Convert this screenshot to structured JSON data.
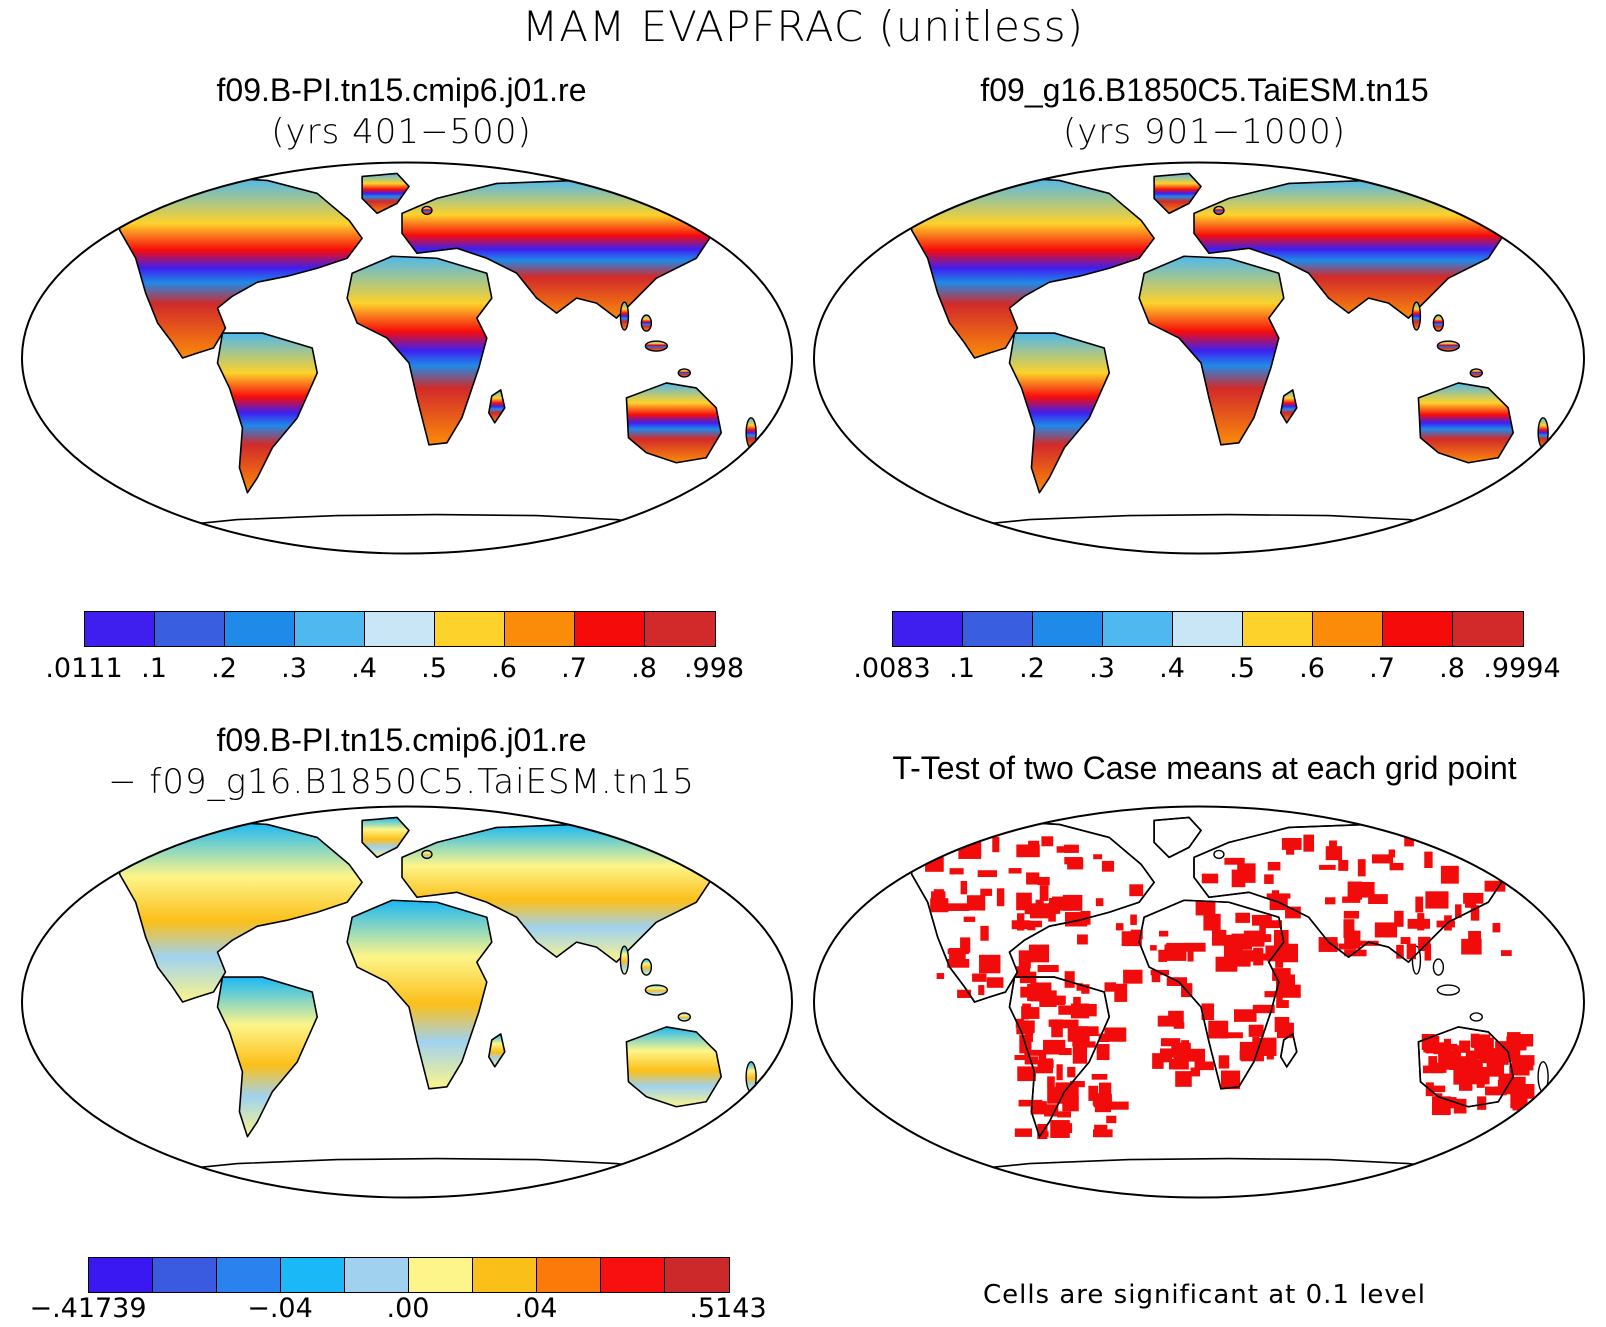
{
  "title": "MAM EVAPFRAC (unitless)",
  "panels": [
    {
      "id": "p1",
      "title": "f09.B-PI.tn15.cmip6.j01.re",
      "subtitle": "(yrs 401−500)",
      "colorbar": {
        "colors": [
          "#3f1ff0",
          "#3a5ee0",
          "#1f8ae8",
          "#4fb8ee",
          "#c8e6f6",
          "#fdd22b",
          "#fb8c09",
          "#f60b0b",
          "#d22a2a"
        ],
        "labels": [
          ".0111",
          ".1",
          ".2",
          ".3",
          ".4",
          ".5",
          ".6",
          ".7",
          ".8",
          ".998"
        ]
      }
    },
    {
      "id": "p2",
      "title": "f09_g16.B1850C5.TaiESM.tn15",
      "subtitle": "(yrs 901−1000)",
      "colorbar": {
        "colors": [
          "#3f1ff0",
          "#3a5ee0",
          "#1f8ae8",
          "#4fb8ee",
          "#c8e6f6",
          "#fdd22b",
          "#fb8c09",
          "#f60b0b",
          "#d22a2a"
        ],
        "labels": [
          ".0083",
          ".1",
          ".2",
          ".3",
          ".4",
          ".5",
          ".6",
          ".7",
          ".8",
          ".9994"
        ]
      }
    },
    {
      "id": "p3",
      "title": "f09.B-PI.tn15.cmip6.j01.re",
      "subtitle": "− f09_g16.B1850C5.TaiESM.tn15",
      "colorbar": {
        "colors": [
          "#3a18f2",
          "#3a5ae0",
          "#2a82ee",
          "#1ab8f6",
          "#a0d2f0",
          "#fdf589",
          "#fbbf1a",
          "#fb7a0a",
          "#f81010",
          "#cc2a2a"
        ],
        "labels": [
          "−.41739",
          "−.04",
          ".00",
          ".04",
          ".5143"
        ]
      }
    },
    {
      "id": "p4",
      "title": "T-Test of two Case means at each grid point",
      "subtitle": "",
      "note": "Cells are significant at 0.1 level"
    }
  ]
}
